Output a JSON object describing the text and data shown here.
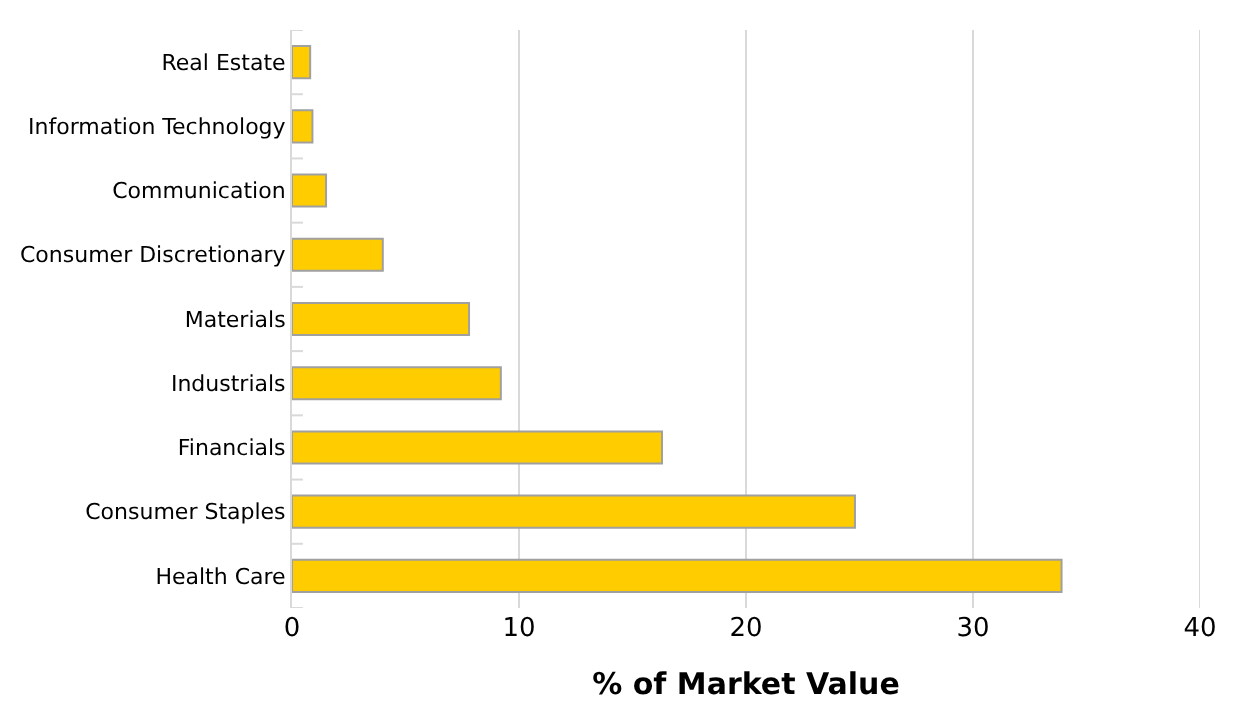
{
  "chart_data": {
    "type": "bar",
    "orientation": "horizontal",
    "xlabel": "% of Market Value",
    "categories": [
      "Real Estate",
      "Information Technology",
      "Communication",
      "Consumer Discretionary",
      "Materials",
      "Industrials",
      "Financials",
      "Consumer Staples",
      "Health Care"
    ],
    "values": [
      0.8,
      0.9,
      1.5,
      4.0,
      7.8,
      9.2,
      16.3,
      24.8,
      33.9
    ],
    "color": "#ffcc00",
    "xlim": [
      0,
      40
    ],
    "xticks": [
      0,
      10,
      20,
      30,
      40
    ],
    "grid": "x"
  }
}
